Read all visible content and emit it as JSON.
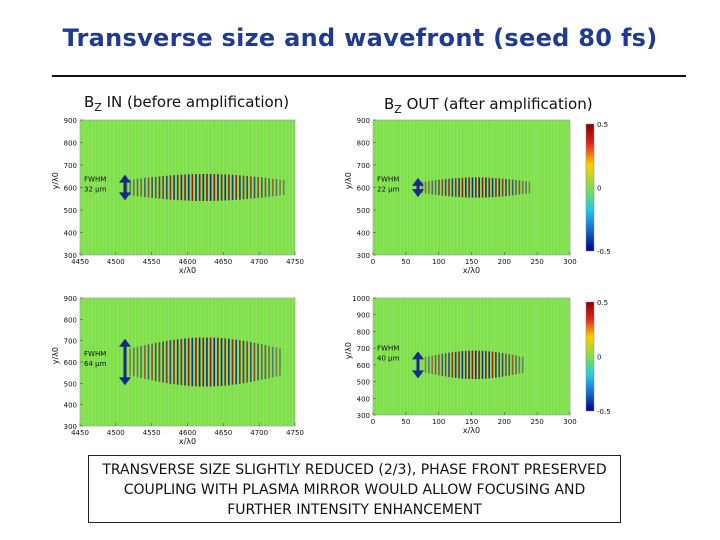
{
  "slide": {
    "title": "Transverse size and  wavefront (seed 80 fs)",
    "label_in": {
      "var": "B",
      "sub": "Z",
      "rest": " IN (before amplification)"
    },
    "label_out": {
      "var": "B",
      "sub": "Z",
      "rest": " OUT (after amplification)"
    },
    "caption": [
      "TRANSVERSE SIZE SLIGHTLY REDUCED (2/3), PHASE FRONT PRESERVED",
      "COUPLING WITH PLASMA MIRROR WOULD ALLOW FOCUSING AND",
      "FURTHER  INTENSITY ENHANCEMENT"
    ]
  },
  "colors": {
    "title": "#1f3a93",
    "background_field": "#7fe04a",
    "positive": "#a0101a",
    "negative": "#1a2a8a",
    "arrow": "#1a2a8a"
  },
  "chart_data": [
    {
      "id": "in_top",
      "type": "heatmap",
      "panel": "before amplification",
      "ylabel": "y/λ0",
      "xlabel": "x/λ0",
      "xlim": [
        4450,
        4750
      ],
      "ylim": [
        300,
        900
      ],
      "xticks": [
        "4450",
        "4500",
        "4550",
        "4600",
        "4650",
        "4700",
        "4750"
      ],
      "yticks": [
        "900",
        "800",
        "700",
        "600",
        "500",
        "400",
        "300"
      ],
      "fwhm_label": [
        "FWHM",
        "32 μm"
      ],
      "band": {
        "x_start": 4515,
        "x_end": 4735,
        "y_center": 600,
        "y_half": 60,
        "stripe_period": 5.1
      }
    },
    {
      "id": "in_bottom",
      "type": "heatmap",
      "panel": "before amplification",
      "ylabel": "y/λ0",
      "xlabel": "x/λ0",
      "xlim": [
        4450,
        4750
      ],
      "ylim": [
        300,
        900
      ],
      "xticks": [
        "4450",
        "4500",
        "4550",
        "4600",
        "4650",
        "4700",
        "4750"
      ],
      "yticks": [
        "900",
        "800",
        "700",
        "600",
        "500",
        "400",
        "300"
      ],
      "fwhm_label": [
        "FWHM",
        "64 μm"
      ],
      "band": {
        "x_start": 4520,
        "x_end": 4730,
        "y_center": 600,
        "y_half": 115,
        "stripe_period": 5.1
      }
    },
    {
      "id": "out_top",
      "type": "heatmap",
      "panel": "after amplification",
      "ylabel": "y/λ0",
      "xlabel": "x/λ0",
      "xlim": [
        0,
        300
      ],
      "ylim": [
        300,
        900
      ],
      "xticks": [
        "0",
        "50",
        "100",
        "150",
        "200",
        "250",
        "300"
      ],
      "yticks": [
        "900",
        "800",
        "700",
        "600",
        "500",
        "400",
        "300"
      ],
      "fwhm_label": [
        "FWHM",
        "22 μm"
      ],
      "colorbar": {
        "min": -0.5,
        "max": 0.5,
        "ticks": [
          "0.5",
          "0",
          "-0.5"
        ]
      },
      "band": {
        "x_start": 75,
        "x_end": 240,
        "y_center": 600,
        "y_half": 45,
        "stripe_period": 5.1
      }
    },
    {
      "id": "out_bottom",
      "type": "heatmap",
      "panel": "after amplification",
      "ylabel": "y/λ0",
      "xlabel": "x/λ0",
      "xlim": [
        0,
        300
      ],
      "ylim": [
        300,
        1000
      ],
      "xticks": [
        "0",
        "50",
        "100",
        "150",
        "200",
        "250",
        "300"
      ],
      "yticks": [
        "1000",
        "900",
        "800",
        "700",
        "600",
        "500",
        "400",
        "300"
      ],
      "fwhm_label": [
        "FWHM",
        "40 μm"
      ],
      "colorbar": {
        "min": -0.5,
        "max": 0.5,
        "ticks": [
          "0.5",
          "0",
          "-0.5"
        ]
      },
      "band": {
        "x_start": 80,
        "x_end": 230,
        "y_center": 600,
        "y_half": 85,
        "stripe_period": 5.1
      }
    }
  ]
}
